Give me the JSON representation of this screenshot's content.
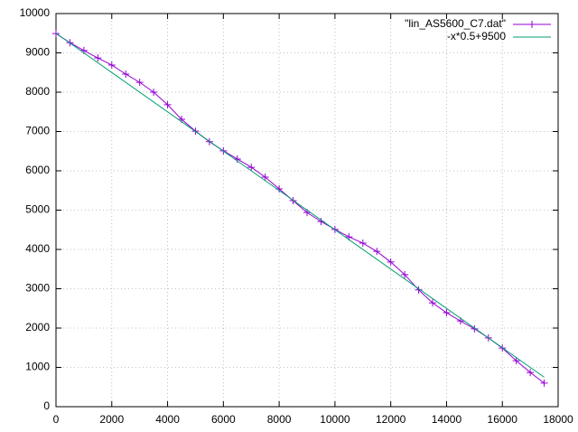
{
  "chart_data": {
    "type": "line",
    "xlim": [
      0,
      18000
    ],
    "xticks": [
      0,
      2000,
      4000,
      6000,
      8000,
      10000,
      12000,
      14000,
      16000,
      18000
    ],
    "ylim": [
      0,
      10000
    ],
    "yticks": [
      0,
      1000,
      2000,
      3000,
      4000,
      5000,
      6000,
      7000,
      8000,
      9000,
      10000
    ],
    "grid": true,
    "legend": "top-right",
    "series": [
      {
        "name": "\"lin_AS5600_C7.dat\"",
        "color": "#9400d3",
        "marker": "+",
        "x": [
          0,
          500,
          1000,
          1500,
          2000,
          2500,
          3000,
          3500,
          4000,
          4500,
          5000,
          5500,
          6000,
          6500,
          7000,
          7500,
          8000,
          8500,
          9000,
          9500,
          10000,
          10500,
          11000,
          11500,
          12000,
          12500,
          13000,
          13500,
          14000,
          14500,
          15000,
          15500,
          16000,
          16500,
          17000,
          17500
        ],
        "values": [
          9490,
          9260,
          9060,
          8870,
          8690,
          8460,
          8250,
          8000,
          7680,
          7310,
          7010,
          6740,
          6510,
          6300,
          6090,
          5840,
          5540,
          5240,
          4940,
          4710,
          4510,
          4320,
          4160,
          3950,
          3680,
          3360,
          2970,
          2640,
          2390,
          2180,
          1980,
          1750,
          1490,
          1170,
          870,
          600
        ]
      },
      {
        "name": "-x*0.5+9500",
        "color": "#009e73",
        "marker": null,
        "x": [
          0,
          17500
        ],
        "values": [
          9500,
          750
        ]
      }
    ]
  }
}
